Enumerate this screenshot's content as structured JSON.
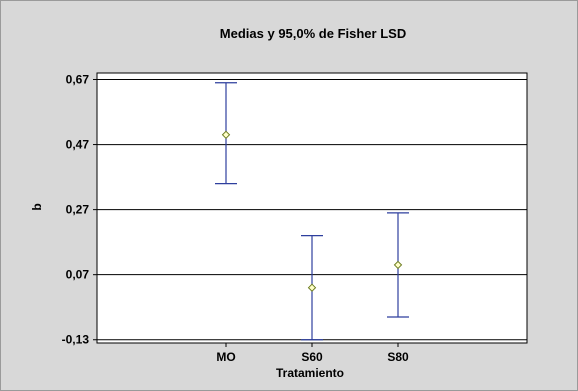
{
  "chart_data": {
    "type": "errorbar",
    "title": "Medias y 95,0% de Fisher LSD",
    "xlabel": "Tratamiento",
    "ylabel": "b",
    "categories": [
      "MO",
      "S60",
      "S80"
    ],
    "means": [
      0.5,
      0.03,
      0.1
    ],
    "lower": [
      0.35,
      -0.13,
      -0.06
    ],
    "upper": [
      0.66,
      0.19,
      0.26
    ],
    "ylim": [
      -0.14,
      0.69
    ],
    "yticks": [
      -0.13,
      0.07,
      0.27,
      0.47,
      0.67
    ],
    "ytick_labels": [
      "-0,13",
      "0,07",
      "0,27",
      "0,47",
      "0,67"
    ],
    "grid": true,
    "colors": {
      "background": "#d8d8d8",
      "plot_area": "#ffffff",
      "error_bar": "#2e3f9e",
      "marker_fill": "#ffffc8",
      "marker_stroke": "#6a7a1e",
      "grid": "#000000"
    }
  }
}
